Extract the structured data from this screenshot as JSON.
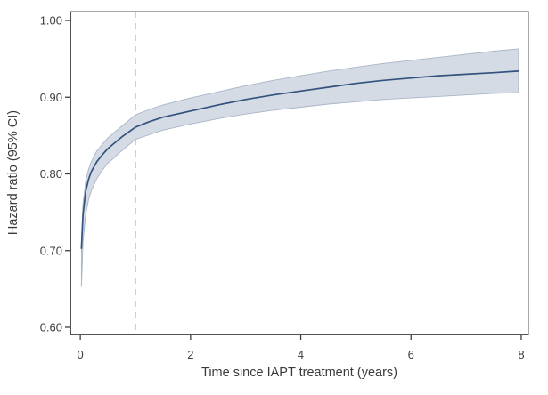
{
  "figure": {
    "background": "#ffffff"
  },
  "chart_data": {
    "type": "line",
    "title": "",
    "xlabel": "Time since IAPT treatment (years)",
    "ylabel": "Hazard ratio (95% CI)",
    "x_ticks": [
      0,
      2,
      4,
      6,
      8
    ],
    "y_tick_values": [
      1.0,
      0.9,
      0.8,
      0.7,
      0.6
    ],
    "y_tick_labels": [
      "1.00",
      "0.90",
      "0.80",
      "0.70",
      "0.60"
    ],
    "x_range": [
      -0.18,
      8.13
    ],
    "y_range": [
      0.5907,
      1.0116
    ],
    "grid": false,
    "legend": null,
    "reference_line": {
      "orientation": "vertical",
      "x": 1,
      "style": "dashed"
    },
    "x": [
      0.02,
      0.05,
      0.1,
      0.15,
      0.2,
      0.3,
      0.4,
      0.5,
      0.6,
      0.75,
      1.0,
      1.25,
      1.5,
      2.0,
      2.5,
      3.0,
      3.5,
      4.0,
      4.5,
      5.0,
      5.5,
      6.0,
      6.5,
      7.0,
      7.5,
      7.95
    ],
    "series": [
      {
        "name": "Hazard ratio",
        "values": [
          0.703,
          0.748,
          0.778,
          0.793,
          0.803,
          0.816,
          0.825,
          0.833,
          0.839,
          0.848,
          0.861,
          0.868,
          0.874,
          0.882,
          0.89,
          0.897,
          0.903,
          0.908,
          0.913,
          0.918,
          0.922,
          0.925,
          0.928,
          0.93,
          0.932,
          0.934
        ],
        "color": "#33527d"
      }
    ],
    "band": {
      "name": "95% CI",
      "lower": [
        0.653,
        0.712,
        0.748,
        0.766,
        0.778,
        0.794,
        0.805,
        0.814,
        0.82,
        0.83,
        0.845,
        0.851,
        0.857,
        0.865,
        0.872,
        0.878,
        0.883,
        0.887,
        0.891,
        0.894,
        0.897,
        0.899,
        0.901,
        0.903,
        0.905,
        0.906
      ],
      "upper": [
        0.712,
        0.762,
        0.792,
        0.806,
        0.816,
        0.83,
        0.839,
        0.847,
        0.853,
        0.862,
        0.877,
        0.884,
        0.89,
        0.899,
        0.907,
        0.915,
        0.922,
        0.928,
        0.934,
        0.939,
        0.944,
        0.948,
        0.952,
        0.956,
        0.96,
        0.963
      ],
      "fill": "#d4dbe5",
      "edge": "#a9b6c7"
    },
    "colors": {
      "axis_box": "#6e6e6e",
      "axis_main": "#3f3f3f",
      "reference_line": "#b9b9b9",
      "tick_text": "#3d3d3d"
    }
  }
}
